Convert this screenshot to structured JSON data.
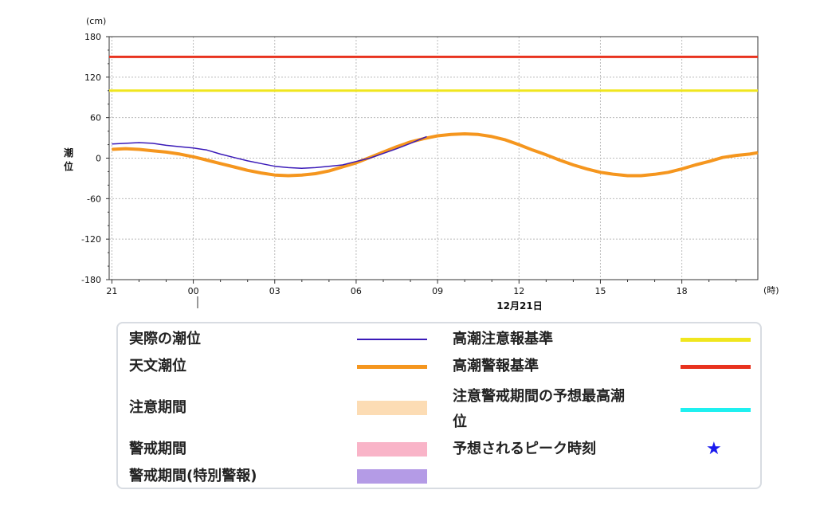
{
  "chart_data": {
    "type": "line",
    "y_unit": "(cm)",
    "x_unit": "(時)",
    "ylabel": "潮位",
    "date_label": "12月21日",
    "ylim": [
      -180,
      180
    ],
    "y_ticks": [
      180,
      120,
      60,
      0,
      -60,
      -120,
      -180
    ],
    "x_ticks": [
      "21",
      "00",
      "03",
      "06",
      "09",
      "12",
      "15",
      "18"
    ],
    "xlim_hours": [
      20.9,
      44.8
    ],
    "grid": true,
    "series": [
      {
        "name": "実際の潮位",
        "color": "#3a1ab8",
        "x_hours": [
          21.0,
          21.5,
          22.0,
          22.5,
          23.0,
          23.5,
          24.0,
          24.5,
          25.0,
          25.5,
          26.0,
          26.5,
          27.0,
          27.5,
          28.0,
          28.5,
          29.0,
          29.5,
          30.0,
          30.5,
          31.0,
          31.5,
          32.0,
          32.6
        ],
        "values": [
          21,
          22,
          23,
          22,
          19,
          17,
          15,
          12,
          6,
          1,
          -4,
          -8,
          -12,
          -14,
          -15,
          -14,
          -12,
          -10,
          -5,
          0,
          7,
          14,
          22,
          32
        ]
      },
      {
        "name": "天文潮位",
        "color": "#f5961e",
        "x_hours": [
          21.0,
          21.5,
          22.0,
          22.5,
          23.0,
          23.5,
          24.0,
          24.5,
          25.0,
          25.5,
          26.0,
          26.5,
          27.0,
          27.5,
          28.0,
          28.5,
          29.0,
          29.5,
          30.0,
          30.5,
          31.0,
          31.5,
          32.0,
          32.5,
          33.0,
          33.5,
          34.0,
          34.5,
          35.0,
          35.5,
          36.0,
          36.5,
          37.0,
          37.5,
          38.0,
          38.5,
          39.0,
          39.5,
          40.0,
          40.5,
          41.0,
          41.5,
          42.0,
          42.5,
          43.0,
          43.5,
          44.0,
          44.5,
          44.8
        ],
        "values": [
          13,
          14,
          13,
          11,
          9,
          6,
          2,
          -3,
          -8,
          -13,
          -18,
          -22,
          -25,
          -26,
          -25,
          -23,
          -19,
          -13,
          -7,
          1,
          9,
          17,
          24,
          29,
          33,
          35,
          36,
          35,
          32,
          27,
          20,
          12,
          5,
          -3,
          -10,
          -16,
          -21,
          -24,
          -26,
          -26,
          -24,
          -21,
          -16,
          -10,
          -5,
          1,
          4,
          6,
          8
        ]
      }
    ],
    "thresholds": [
      {
        "name": "高潮警報基準",
        "value": 150,
        "color": "#e8321e"
      },
      {
        "name": "高潮注意報基準",
        "value": 100,
        "color": "#f0e61e"
      }
    ]
  },
  "legend": {
    "items": [
      {
        "label": "実際の潮位",
        "color": "#3a1ab8",
        "kind": "line"
      },
      {
        "label": "天文潮位",
        "color": "#f5961e",
        "kind": "line"
      },
      {
        "label": "注意期間",
        "color": "#fcdcb4",
        "kind": "band"
      },
      {
        "label": "警戒期間",
        "color": "#f9b4c8",
        "kind": "band"
      },
      {
        "label": "警戒期間(特別警報)",
        "color": "#b49be6",
        "kind": "band"
      },
      {
        "label": "高潮注意報基準",
        "color": "#f0e61e",
        "kind": "line"
      },
      {
        "label": "高潮警報基準",
        "color": "#e8321e",
        "kind": "line"
      },
      {
        "label": "注意警戒期間の予想最高潮",
        "label2": "位",
        "color": "#1ef0f0",
        "kind": "line"
      },
      {
        "label": "予想されるピーク時刻",
        "color": "#1a1aee",
        "kind": "star",
        "icon": "star-icon"
      }
    ]
  }
}
